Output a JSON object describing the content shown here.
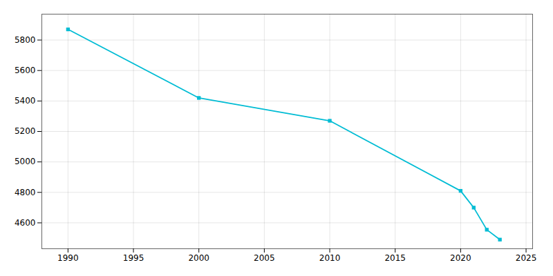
{
  "chart_data": {
    "type": "line",
    "x": [
      1990,
      2000,
      2010,
      2020,
      2021,
      2022,
      2023
    ],
    "values": [
      5870,
      5420,
      5270,
      4810,
      4700,
      4555,
      4490
    ],
    "color": "#00BCD4",
    "marker": "square",
    "xlim": [
      1988,
      2025.5
    ],
    "ylim": [
      4430,
      5970
    ],
    "xticks": [
      1990,
      1995,
      2000,
      2005,
      2010,
      2015,
      2020,
      2025
    ],
    "yticks": [
      4600,
      4800,
      5000,
      5200,
      5400,
      5600,
      5800
    ],
    "grid": true
  }
}
